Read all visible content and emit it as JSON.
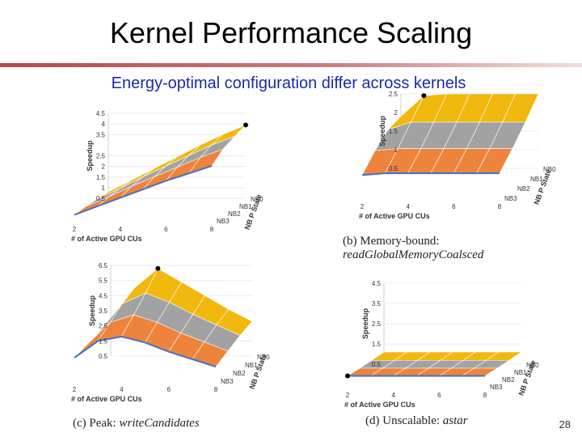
{
  "slide": {
    "title": "Kernel Performance Scaling",
    "subtitle": "Energy-optimal configuration differ across kernels",
    "page_number": "28"
  },
  "colors": {
    "nb0": "#f0b400",
    "nb1": "#9d9d9d",
    "nb2": "#ed7d31",
    "nb3": "#4472c4",
    "title_rule": "#b5494d",
    "subtitle": "#1b2aa6"
  },
  "chart_data": [
    {
      "id": "a",
      "type": "surface3d",
      "caption_label": "",
      "caption_name": "",
      "ylabel": "Speedup",
      "xlabel": "# of Active GPU CUs",
      "zlabel": "NB P State",
      "y_ticks": [
        "0.5",
        "1",
        "1.5",
        "2",
        "2.5",
        "3.5",
        "4",
        "4.5"
      ],
      "x_ticks": [
        "2",
        "4",
        "6",
        "8"
      ],
      "z_ticks": [
        "NB0",
        "NB1",
        "NB2",
        "NB3"
      ],
      "ylim": [
        0.5,
        4.5
      ],
      "x": [
        2,
        3,
        4,
        5,
        6,
        7,
        8
      ],
      "series": [
        {
          "name": "NB0",
          "values": [
            0.8,
            1.35,
            1.9,
            2.45,
            3.0,
            3.5,
            3.95
          ]
        },
        {
          "name": "NB1",
          "values": [
            0.8,
            1.3,
            1.85,
            2.35,
            2.85,
            3.35,
            3.75
          ]
        },
        {
          "name": "NB2",
          "values": [
            0.8,
            1.25,
            1.75,
            2.2,
            2.65,
            3.1,
            3.5
          ]
        },
        {
          "name": "NB3",
          "values": [
            0.75,
            1.15,
            1.55,
            1.95,
            2.35,
            2.7,
            3.05
          ]
        }
      ],
      "optimal_point": {
        "x": 8,
        "nb": "NB0"
      }
    },
    {
      "id": "b",
      "type": "surface3d",
      "caption_label": "(b) Memory-bound:",
      "caption_name": "readGlobalMemoryCoalsced",
      "ylabel": "Speedup",
      "xlabel": "# of Active GPU CUs",
      "zlabel": "NB P State",
      "y_ticks": [
        "0.5",
        "1",
        "1.5",
        "2",
        "2.5"
      ],
      "x_ticks": [
        "2",
        "4",
        "6",
        "8"
      ],
      "z_ticks": [
        "NB0",
        "NB1",
        "NB2",
        "NB3"
      ],
      "ylim": [
        0.5,
        2.5
      ],
      "x": [
        2,
        3,
        4,
        5,
        6,
        7,
        8
      ],
      "series": [
        {
          "name": "NB0",
          "values": [
            1.9,
            2.45,
            2.5,
            2.5,
            2.5,
            2.5,
            2.5
          ]
        },
        {
          "name": "NB1",
          "values": [
            1.8,
            2.0,
            2.0,
            2.0,
            2.0,
            2.0,
            2.0
          ]
        },
        {
          "name": "NB2",
          "values": [
            1.5,
            1.55,
            1.55,
            1.55,
            1.55,
            1.55,
            1.55
          ]
        },
        {
          "name": "NB3",
          "values": [
            1.1,
            1.15,
            1.15,
            1.15,
            1.15,
            1.15,
            1.15
          ]
        }
      ],
      "optimal_point": {
        "x": 3,
        "nb": "NB0"
      }
    },
    {
      "id": "c",
      "type": "surface3d",
      "caption_label": "(c) Peak:",
      "caption_name": "writeCandidates",
      "ylabel": "Speedup",
      "xlabel": "# of Active GPU CUs",
      "zlabel": "NB P State",
      "y_ticks": [
        "0.5",
        "1.5",
        "2.5",
        "3.5",
        "4.5",
        "5.5",
        "6.5"
      ],
      "x_ticks": [
        "2",
        "4",
        "6",
        "8"
      ],
      "z_ticks": [
        "NB0",
        "NB1",
        "NB2",
        "NB3"
      ],
      "ylim": [
        0.5,
        6.5
      ],
      "x": [
        2,
        3,
        4,
        5,
        6,
        7,
        8
      ],
      "series": [
        {
          "name": "NB0",
          "values": [
            2.8,
            5.0,
            6.3,
            5.4,
            4.5,
            3.6,
            2.8
          ]
        },
        {
          "name": "NB1",
          "values": [
            2.6,
            4.5,
            5.2,
            4.6,
            3.8,
            3.1,
            2.4
          ]
        },
        {
          "name": "NB2",
          "values": [
            2.3,
            3.8,
            4.3,
            3.8,
            3.1,
            2.5,
            1.9
          ]
        },
        {
          "name": "NB3",
          "values": [
            2.0,
            3.1,
            3.4,
            3.0,
            2.4,
            1.9,
            1.4
          ]
        }
      ],
      "optimal_point": {
        "x": 4,
        "nb": "NB0"
      }
    },
    {
      "id": "d",
      "type": "surface3d",
      "caption_label": "(d) Unscalable:",
      "caption_name": "astar",
      "ylabel": "Speedup",
      "xlabel": "# of Active GPU CUs",
      "zlabel": "NB P State",
      "y_ticks": [
        "0.5",
        "1.5",
        "2.5",
        "3.5",
        "4.5"
      ],
      "x_ticks": [
        "2",
        "4",
        "6",
        "8"
      ],
      "z_ticks": [
        "NB0",
        "NB1",
        "NB2",
        "NB3"
      ],
      "ylim": [
        0.5,
        4.5
      ],
      "x": [
        2,
        3,
        4,
        5,
        6,
        7,
        8
      ],
      "series": [
        {
          "name": "NB0",
          "values": [
            1.1,
            1.1,
            1.1,
            1.1,
            1.1,
            1.1,
            1.1
          ]
        },
        {
          "name": "NB1",
          "values": [
            1.05,
            1.05,
            1.05,
            1.05,
            1.05,
            1.05,
            1.05
          ]
        },
        {
          "name": "NB2",
          "values": [
            1.02,
            1.02,
            1.02,
            1.02,
            1.02,
            1.02,
            1.02
          ]
        },
        {
          "name": "NB3",
          "values": [
            1.0,
            1.0,
            1.0,
            1.0,
            1.0,
            1.0,
            1.0
          ]
        }
      ],
      "optimal_point": {
        "x": 2,
        "nb": "NB3"
      }
    }
  ]
}
